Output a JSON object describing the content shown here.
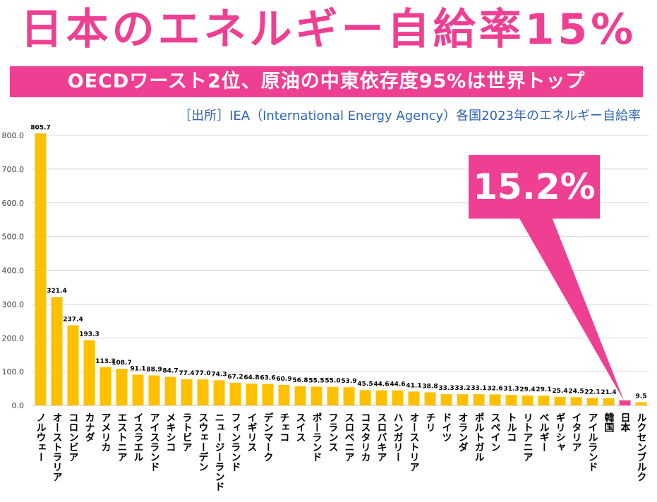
{
  "title": "日本のエネルギー自給率15%",
  "subtitle": "OECDワースト2位、原油の中東依存度95%は世界トップ",
  "source": "［出所］IEA（International Energy Agency）各国2023年のエネルギー自給率",
  "callout": "15.2%",
  "colors": {
    "accent": "#ef3f93",
    "bar": "#ffc000",
    "highlight": "#ef3f93",
    "source_text": "#2f64b7"
  },
  "chart_data": {
    "type": "bar",
    "categories": [
      "ノルウェー",
      "オーストラリア",
      "コロンビア",
      "カナダ",
      "アメリカ",
      "エストニア",
      "イスラエル",
      "アイスランド",
      "メキシコ",
      "ラトビア",
      "スウェーデン",
      "ニュージーランド",
      "フィンランド",
      "イギリス",
      "デンマーク",
      "チェコ",
      "スイス",
      "ポーランド",
      "フランス",
      "スロベニア",
      "コスタリカ",
      "スロバキア",
      "ハンガリー",
      "オーストリア",
      "チリ",
      "ドイツ",
      "オランダ",
      "ポルトガル",
      "スペイン",
      "トルコ",
      "リトアニア",
      "ベルギー",
      "ギリシャ",
      "イタリア",
      "アイルランド",
      "韓国",
      "日本",
      "ルクセンブルク"
    ],
    "values": [
      805.7,
      321.4,
      237.4,
      193.3,
      113.2,
      108.7,
      91.1,
      88.9,
      84.7,
      77.4,
      77.0,
      74.3,
      67.2,
      64.8,
      63.6,
      60.9,
      56.8,
      55.5,
      55.0,
      53.9,
      45.5,
      44.6,
      44.6,
      41.1,
      38.8,
      33.3,
      33.2,
      33.1,
      32.6,
      31.3,
      29.4,
      29.1,
      25.4,
      24.5,
      22.1,
      21.4,
      15.2,
      9.5
    ],
    "value_labels": [
      "805.7",
      "321.4",
      "237.4",
      "193.3",
      "113.2",
      "108.7",
      "91.1",
      "88.9",
      "84.7",
      "77.4",
      "77.0",
      "74.3",
      "67.2",
      "64.8",
      "63.6",
      "60.9",
      "56.8",
      "55.5",
      "55.0",
      "53.9",
      "45.5",
      "44.6",
      "44.6",
      "41.1",
      "38.8",
      "33.3",
      "33.2",
      "33.1",
      "32.6",
      "31.3",
      "29.4",
      "29.1",
      "25.4",
      "24.5",
      "22.1",
      "21.4",
      "",
      "9.5"
    ],
    "highlight_category": "日本",
    "ylim": [
      0,
      800
    ],
    "y_ticks": [
      "0.0",
      "100.0",
      "200.0",
      "300.0",
      "400.0",
      "500.0",
      "600.0",
      "700.0",
      "800.0"
    ],
    "grid": true,
    "legend": false
  }
}
